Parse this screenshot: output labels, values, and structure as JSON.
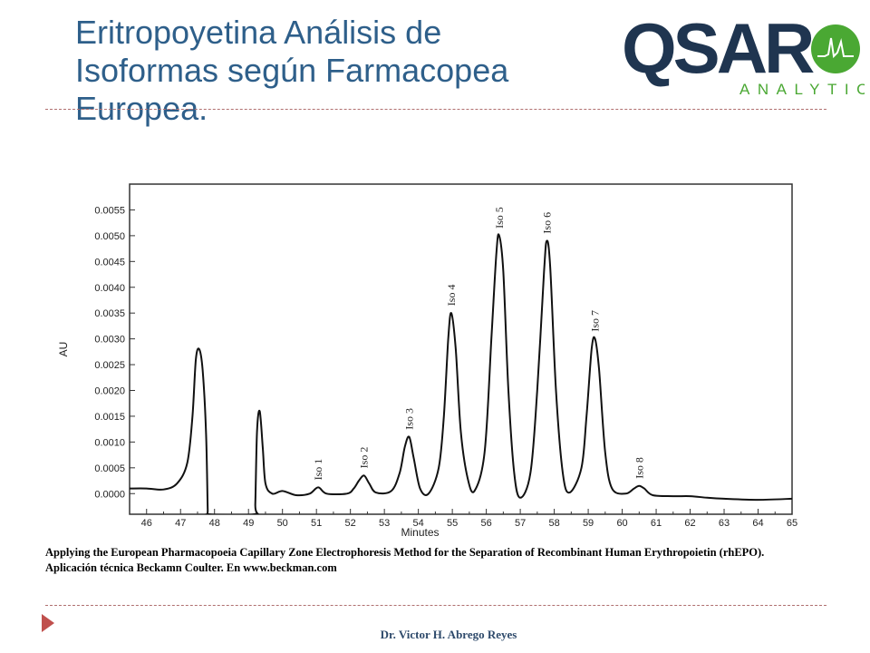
{
  "slide": {
    "title": "Eritropoyetina Análisis de Isoformas según Farmacopea Europea.",
    "caption": "Applying the European Pharmacopoeia Capillary Zone Electrophoresis Method for the Separation of Recombinant Human Erythropoietin (rhEPO). Aplicación técnica Beckamn Coulter. En www.beckman.com",
    "footer": "Dr. Victor H. Abrego Reyes",
    "logo": {
      "main": "QSAR",
      "sub": "ANALYTICS",
      "icon": "chromatogram-circle-icon"
    },
    "colors": {
      "title": "#2e5f8a",
      "logo_dark": "#1f3550",
      "logo_green": "#4aa833",
      "divider": "#b07070",
      "bullet": "#c0504d"
    }
  },
  "chart_data": {
    "type": "line",
    "xlabel": "Minutes",
    "ylabel": "AU",
    "xlim": [
      45.5,
      65
    ],
    "ylim": [
      -0.0004,
      0.006
    ],
    "xticks": [
      46,
      47,
      48,
      49,
      50,
      51,
      52,
      53,
      54,
      55,
      56,
      57,
      58,
      59,
      60,
      61,
      62,
      63,
      64,
      65
    ],
    "xticklabels": [
      "46",
      "47",
      "48",
      "49",
      "50",
      "51",
      "52",
      "53",
      "54",
      "55",
      "56",
      "57",
      "58",
      "59",
      "60",
      "61",
      "62",
      "63",
      "64",
      "65"
    ],
    "yticks": [
      0.0,
      0.0005,
      0.001,
      0.0015,
      0.002,
      0.0025,
      0.003,
      0.0035,
      0.004,
      0.0045,
      0.005,
      0.0055
    ],
    "yticklabels": [
      "0.0000",
      "0.0005",
      "0.0010",
      "0.0015",
      "0.0020",
      "0.0025",
      "0.0030",
      "0.0035",
      "0.0040",
      "0.0045",
      "0.0050",
      "0.0055"
    ],
    "grid": false,
    "series": [
      {
        "values": [
          [
            45.5,
            0.0001
          ],
          [
            46.0,
            0.0001
          ],
          [
            46.5,
            8e-05
          ],
          [
            46.9,
            0.0002
          ],
          [
            47.2,
            0.0006
          ],
          [
            47.35,
            0.0015
          ],
          [
            47.45,
            0.0026
          ],
          [
            47.55,
            0.0028
          ],
          [
            47.65,
            0.0024
          ],
          [
            47.75,
            0.0012
          ],
          [
            47.8,
            -0.0003
          ],
          [
            47.82,
            -0.0004
          ],
          [
            49.17,
            -0.0004
          ],
          [
            49.2,
            -0.0002
          ],
          [
            49.25,
            0.0012
          ],
          [
            49.33,
            0.0016
          ],
          [
            49.42,
            0.0009
          ],
          [
            49.5,
            0.0002
          ],
          [
            49.7,
            0.0
          ],
          [
            50.0,
            5e-05
          ],
          [
            50.4,
            -3e-05
          ],
          [
            50.8,
            0.0
          ],
          [
            51.05,
            0.00012
          ],
          [
            51.3,
            0.0
          ],
          [
            51.9,
            0.0
          ],
          [
            52.1,
            0.0001
          ],
          [
            52.25,
            0.00025
          ],
          [
            52.4,
            0.00035
          ],
          [
            52.55,
            0.0002
          ],
          [
            52.75,
            2e-05
          ],
          [
            53.2,
            5e-05
          ],
          [
            53.45,
            0.0004
          ],
          [
            53.6,
            0.0009
          ],
          [
            53.73,
            0.0011
          ],
          [
            53.86,
            0.0007
          ],
          [
            54.05,
            0.0001
          ],
          [
            54.3,
            0.0
          ],
          [
            54.6,
            0.0005
          ],
          [
            54.75,
            0.0015
          ],
          [
            54.88,
            0.003
          ],
          [
            54.97,
            0.0035
          ],
          [
            55.1,
            0.0028
          ],
          [
            55.25,
            0.0012
          ],
          [
            55.45,
            0.0003
          ],
          [
            55.65,
            5e-05
          ],
          [
            55.95,
            0.0008
          ],
          [
            56.15,
            0.003
          ],
          [
            56.3,
            0.0047
          ],
          [
            56.38,
            0.005
          ],
          [
            56.5,
            0.0043
          ],
          [
            56.65,
            0.002
          ],
          [
            56.82,
            0.0004
          ],
          [
            57.0,
            -8e-05
          ],
          [
            57.3,
            0.0004
          ],
          [
            57.5,
            0.002
          ],
          [
            57.7,
            0.0043
          ],
          [
            57.78,
            0.0049
          ],
          [
            57.88,
            0.0044
          ],
          [
            58.05,
            0.002
          ],
          [
            58.25,
            0.0004
          ],
          [
            58.45,
            2e-05
          ],
          [
            58.8,
            0.0005
          ],
          [
            58.95,
            0.0015
          ],
          [
            59.1,
            0.0028
          ],
          [
            59.2,
            0.003
          ],
          [
            59.32,
            0.0024
          ],
          [
            59.5,
            0.0008
          ],
          [
            59.7,
            0.0001
          ],
          [
            60.1,
            0.0
          ],
          [
            60.35,
            0.0001
          ],
          [
            60.5,
            0.00015
          ],
          [
            60.65,
            0.0001
          ],
          [
            60.9,
            -3e-05
          ],
          [
            61.5,
            -5e-05
          ],
          [
            62.0,
            -5e-05
          ],
          [
            62.5,
            -8e-05
          ],
          [
            63.0,
            -0.0001
          ],
          [
            64.0,
            -0.00012
          ],
          [
            65.0,
            -0.0001
          ]
        ]
      }
    ],
    "peak_labels": [
      {
        "text": "Iso 1",
        "x": 51.05,
        "y": 0.00012
      },
      {
        "text": "Iso 2",
        "x": 52.4,
        "y": 0.00035
      },
      {
        "text": "Iso 3",
        "x": 53.73,
        "y": 0.0011
      },
      {
        "text": "Iso 4",
        "x": 54.97,
        "y": 0.0035
      },
      {
        "text": "Iso 5",
        "x": 56.38,
        "y": 0.005
      },
      {
        "text": "Iso 6",
        "x": 57.78,
        "y": 0.0049
      },
      {
        "text": "Iso 7",
        "x": 59.2,
        "y": 0.003
      },
      {
        "text": "Iso 8",
        "x": 60.5,
        "y": 0.00015
      }
    ]
  }
}
